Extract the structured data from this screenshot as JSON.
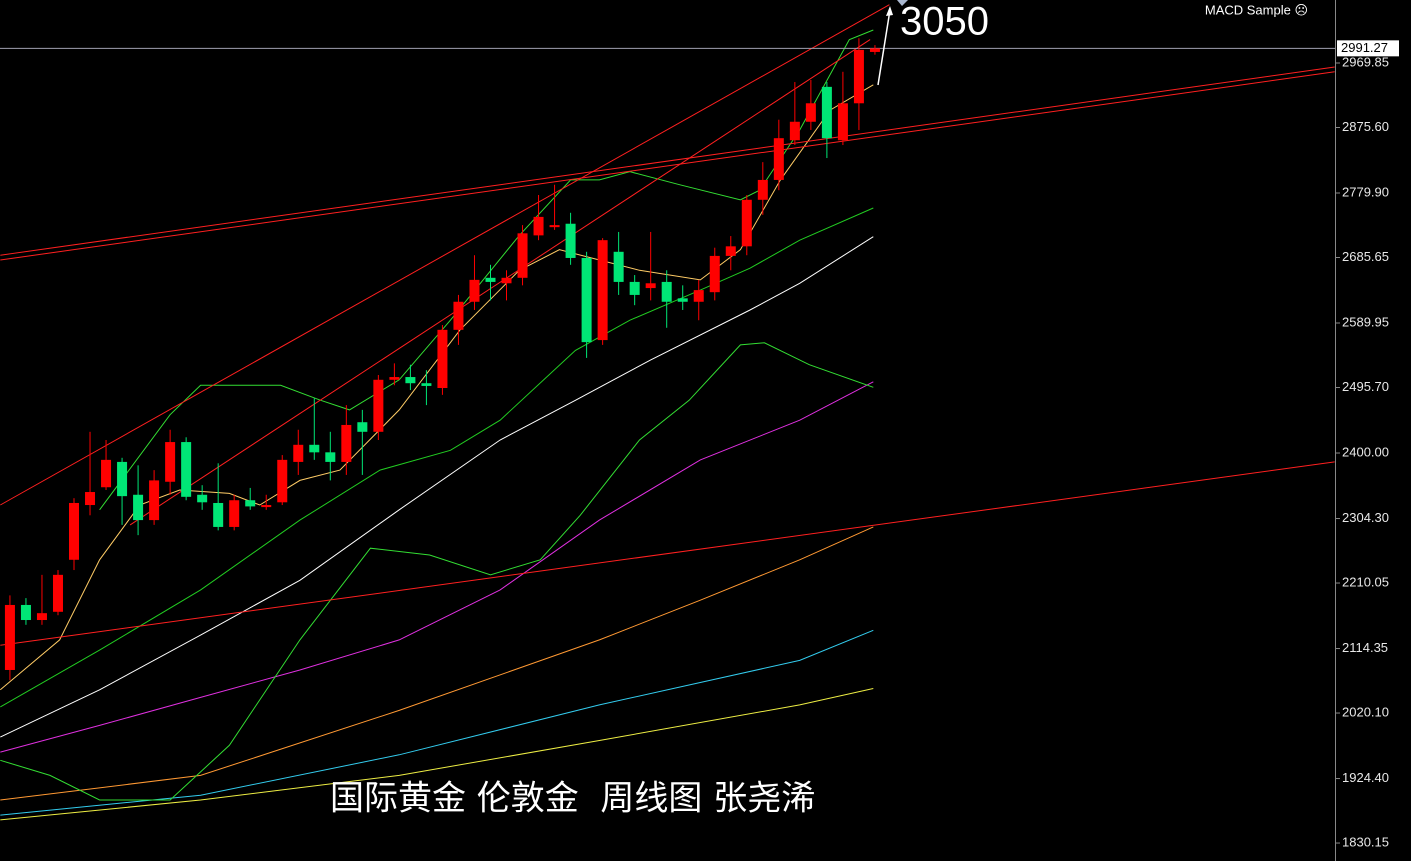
{
  "chart_data": {
    "type": "candlestick",
    "indicator_label": "MACD Sample ☹",
    "annotations": [
      "3050",
      "国际黄金 伦敦金  周线图 张尧浠"
    ],
    "up_color": "#ff0000",
    "down_color": "#00e676",
    "x": [
      0,
      1,
      2,
      3,
      4,
      5,
      6,
      7,
      8,
      9,
      10,
      11,
      12,
      13,
      14,
      15,
      16,
      17,
      18,
      19,
      20,
      21,
      22,
      23,
      24,
      25,
      26,
      27,
      28,
      29,
      30,
      31,
      32,
      33,
      34,
      35,
      36,
      37,
      38,
      39,
      40,
      41,
      42,
      43,
      44,
      45,
      46,
      47,
      48,
      49,
      50,
      51,
      52,
      53,
      54
    ],
    "open": [
      2083,
      2178,
      2156,
      2168,
      2244,
      2324,
      2350,
      2387,
      2339,
      2302,
      2358,
      2416,
      2339,
      2327,
      2292,
      2331,
      2321,
      2328,
      2387,
      2412,
      2401,
      2387,
      2445,
      2431,
      2507,
      2511,
      2502,
      2495,
      2580,
      2621,
      2656,
      2648,
      2656,
      2718,
      2730,
      2735,
      2685,
      2565,
      2694,
      2650,
      2641,
      2650,
      2626,
      2621,
      2635,
      2688,
      2702,
      2770,
      2799,
      2857,
      2884,
      2935,
      2857,
      2911,
      2986
    ],
    "high": [
      2192,
      2188,
      2222,
      2229,
      2334,
      2431,
      2419,
      2393,
      2382,
      2375,
      2434,
      2423,
      2353,
      2385,
      2339,
      2349,
      2339,
      2397,
      2434,
      2480,
      2431,
      2470,
      2463,
      2514,
      2531,
      2529,
      2521,
      2587,
      2631,
      2689,
      2675,
      2667,
      2733,
      2777,
      2792,
      2751,
      2694,
      2714,
      2723,
      2660,
      2723,
      2667,
      2645,
      2653,
      2700,
      2717,
      2777,
      2825,
      2887,
      2942,
      2945,
      2942,
      2957,
      3006,
      2996
    ],
    "low": [
      2068,
      2149,
      2149,
      2163,
      2229,
      2309,
      2346,
      2295,
      2280,
      2295,
      2339,
      2331,
      2317,
      2287,
      2287,
      2317,
      2317,
      2324,
      2368,
      2390,
      2360,
      2368,
      2368,
      2419,
      2499,
      2492,
      2470,
      2485,
      2558,
      2609,
      2623,
      2623,
      2645,
      2711,
      2726,
      2675,
      2539,
      2558,
      2631,
      2616,
      2623,
      2583,
      2609,
      2594,
      2623,
      2667,
      2689,
      2748,
      2784,
      2850,
      2872,
      2831,
      2850,
      2872,
      2982
    ],
    "close": [
      2178,
      2156,
      2166,
      2222,
      2327,
      2343,
      2390,
      2337,
      2302,
      2360,
      2416,
      2336,
      2328,
      2292,
      2331,
      2322,
      2324,
      2390,
      2412,
      2401,
      2387,
      2441,
      2431,
      2507,
      2511,
      2502,
      2498,
      2580,
      2621,
      2653,
      2650,
      2656,
      2721,
      2745,
      2733,
      2685,
      2562,
      2711,
      2650,
      2631,
      2648,
      2621,
      2621,
      2638,
      2688,
      2702,
      2770,
      2799,
      2860,
      2884,
      2911,
      2860,
      2911,
      2989,
      2991.27
    ],
    "last_price": 2991.27,
    "last_price_color": "#a0a0b0",
    "xlim": [
      -0.62,
      82.72
    ],
    "ylim": [
      1803.9,
      3061.9
    ],
    "yticks": [
      1830.15,
      {
        "value": 1924.4,
        "label": "1924.40"
      },
      {
        "value": 2020.1,
        "label": "2020.10"
      },
      2114.35,
      2210.05,
      {
        "value": 2304.3,
        "label": "2304.30"
      },
      {
        "value": 2400,
        "label": "2400.00"
      },
      {
        "value": 2495.7,
        "label": "2495.70"
      },
      2589.95,
      2685.65,
      {
        "value": 2779.9,
        "label": "2779.90"
      },
      {
        "value": 2875.6,
        "label": "2875.60"
      },
      2969.85
    ],
    "lines": [
      {
        "color": "#ffffff",
        "x": [
          -0.6,
          5.6,
          11.9,
          18.1,
          24.3,
          30.6,
          35.3,
          40.0,
          46.2,
          49.3,
          53.9
        ],
        "values": [
          1985,
          2054,
          2134,
          2214,
          2317,
          2419,
          2477,
          2536,
          2609,
          2648,
          2716
        ]
      },
      {
        "color": "#22cc22",
        "x": [
          -0.6,
          5.6,
          11.9,
          18.1,
          23.1,
          27.5,
          30.6,
          35.3,
          38.7,
          43.1,
          46.2,
          49.3,
          53.9
        ],
        "values": [
          2029,
          2112,
          2200,
          2302,
          2375,
          2404,
          2448,
          2550,
          2594,
          2638,
          2670,
          2711,
          2758
        ]
      },
      {
        "color": "#e030e0",
        "x": [
          -0.6,
          5.6,
          11.9,
          18.1,
          24.3,
          30.6,
          36.8,
          43.1,
          49.3,
          53.9
        ],
        "values": [
          1963,
          2002,
          2043,
          2083,
          2127,
          2200,
          2302,
          2390,
          2448,
          2504
        ]
      },
      {
        "color": "#ff9933",
        "x": [
          -0.6,
          11.9,
          24.3,
          36.8,
          43.1,
          49.3,
          53.9
        ],
        "values": [
          1893,
          1929,
          2024,
          2127,
          2185,
          2244,
          2292
        ]
      },
      {
        "color": "#33ccee",
        "x": [
          -0.6,
          11.9,
          24.3,
          36.8,
          49.3,
          53.9
        ],
        "values": [
          1871,
          1900,
          1959,
          2032,
          2097,
          2141
        ]
      },
      {
        "color": "#eeee44",
        "x": [
          -0.6,
          11.9,
          24.3,
          36.8,
          49.3,
          53.9
        ],
        "values": [
          1864,
          1893,
          1929,
          1980,
          2032,
          2056
        ]
      },
      {
        "color": "#33dd33",
        "x": [
          -0.6,
          2.5,
          5.6,
          10.0,
          13.7,
          18.1,
          22.5,
          26.2,
          30.0,
          33.1,
          35.6,
          39.3,
          42.4,
          45.6,
          47.1,
          49.9,
          53.9
        ],
        "values": [
          1951,
          1929,
          1893,
          1893,
          1973,
          2127,
          2261,
          2251,
          2222,
          2244,
          2309,
          2419,
          2477,
          2558,
          2561,
          2529,
          2496
        ]
      },
      {
        "color": "#33dd33",
        "x": [
          5.6,
          10.0,
          11.9,
          16.9,
          19.4,
          21.2,
          24.3,
          27.5,
          31.8,
          35.0,
          36.8,
          38.7,
          41.8,
          45.6,
          46.8,
          49.3,
          52.4,
          53.9
        ],
        "values": [
          2317,
          2456,
          2499,
          2499,
          2477,
          2463,
          2507,
          2594,
          2718,
          2799,
          2799,
          2811,
          2792,
          2770,
          2784,
          2872,
          3004,
          3018
        ]
      },
      {
        "color": "#ffcc66",
        "x": [
          -0.6,
          3.1,
          5.6,
          8.1,
          10.6,
          13.7,
          15.6,
          18.1,
          20.6,
          24.3,
          28.1,
          31.8,
          34.3,
          36.8,
          39.3,
          43.1,
          45.6,
          48.1,
          51.2,
          53.9
        ],
        "values": [
          2054,
          2127,
          2244,
          2324,
          2346,
          2341,
          2324,
          2360,
          2375,
          2463,
          2580,
          2667,
          2697,
          2682,
          2667,
          2653,
          2697,
          2799,
          2901,
          2938
        ]
      },
      {
        "color": "#ff2020",
        "x": [
          -0.6,
          54.9
        ],
        "values": [
          2324,
          3055
        ]
      },
      {
        "color": "#ff2020",
        "x": [
          -0.6,
          82.7
        ],
        "values": [
          2689,
          2964
        ]
      },
      {
        "color": "#ff2020",
        "x": [
          -0.6,
          82.7
        ],
        "values": [
          2682,
          2957
        ]
      },
      {
        "color": "#ff2020",
        "x": [
          -0.6,
          82.7
        ],
        "values": [
          2119,
          2387
        ]
      },
      {
        "color": "#ff2020",
        "x": [
          7.5,
          53.7
        ],
        "values": [
          2295,
          3004
        ]
      }
    ]
  }
}
